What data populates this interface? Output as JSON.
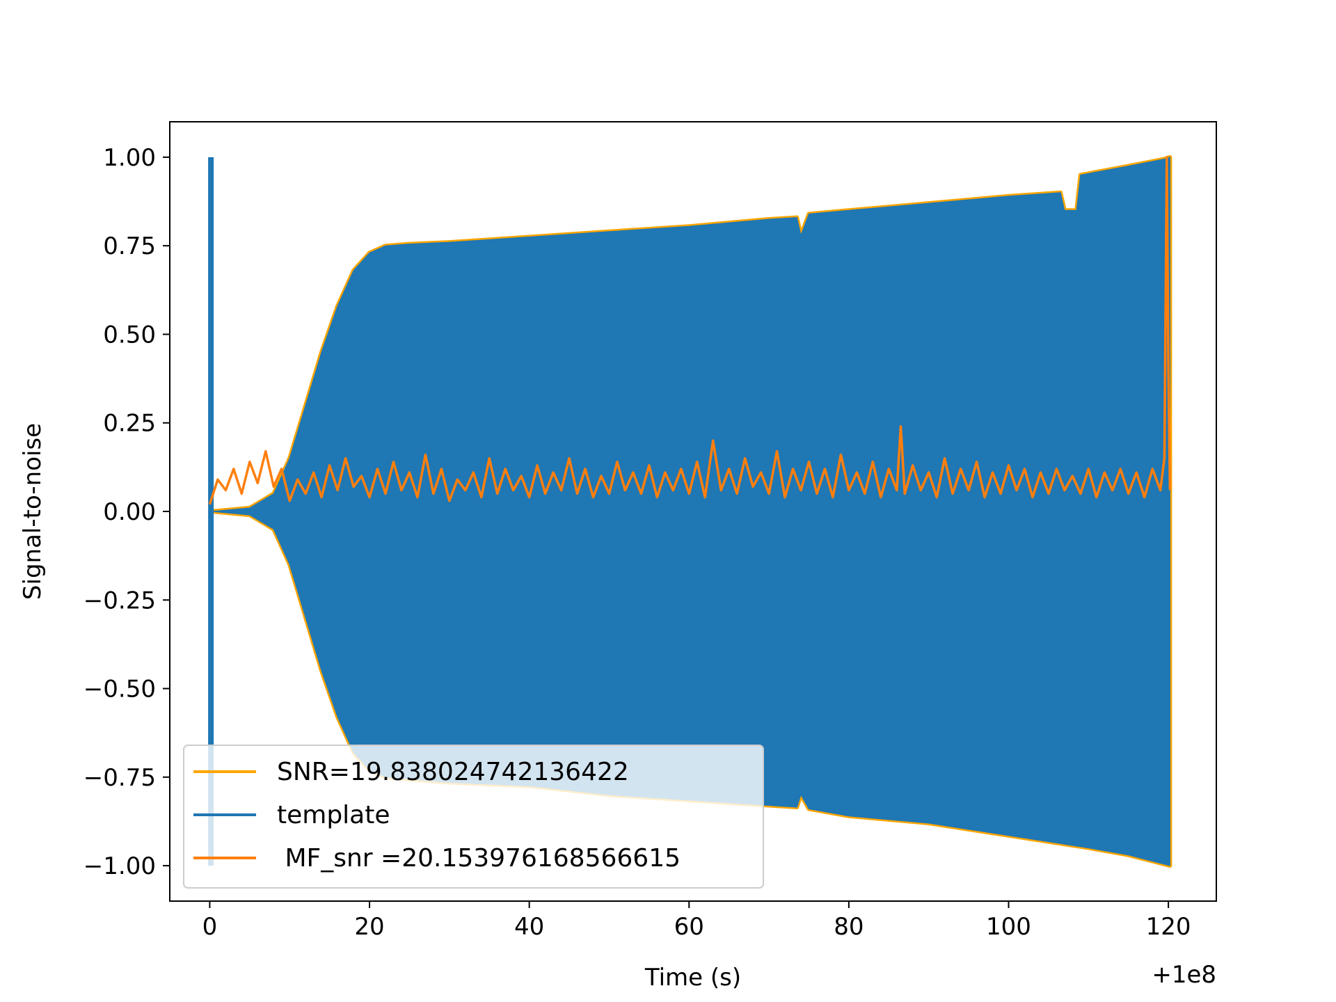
{
  "chart_data": {
    "type": "line",
    "title": "",
    "xlabel": "Time (s)",
    "ylabel": "Signal-to-noise",
    "x_offset_label": "+1e8",
    "xlim": [
      -5,
      126
    ],
    "ylim": [
      -1.1,
      1.1
    ],
    "x_ticks": [
      0,
      20,
      40,
      60,
      80,
      100,
      120
    ],
    "x_tick_labels": [
      "0",
      "20",
      "40",
      "60",
      "80",
      "100",
      "120"
    ],
    "y_ticks": [
      1.0,
      0.75,
      0.5,
      0.25,
      0.0,
      -0.25,
      -0.5,
      -0.75,
      -1.0
    ],
    "y_tick_labels": [
      "1.00",
      "0.75",
      "0.50",
      "0.25",
      "0.00",
      "−0.25",
      "−0.50",
      "−0.75",
      "−1.00"
    ],
    "grid": false,
    "legend_position": "lower-left",
    "series": [
      {
        "name": "SNR=19.838024742136422",
        "color": "#ffa500",
        "kind": "envelope",
        "upper": [
          [
            0.2,
            0.0
          ],
          [
            5,
            0.01
          ],
          [
            8,
            0.05
          ],
          [
            10,
            0.15
          ],
          [
            12,
            0.3
          ],
          [
            14,
            0.45
          ],
          [
            16,
            0.58
          ],
          [
            18,
            0.68
          ],
          [
            20,
            0.73
          ],
          [
            22,
            0.75
          ],
          [
            25,
            0.755
          ],
          [
            30,
            0.76
          ],
          [
            40,
            0.775
          ],
          [
            50,
            0.79
          ],
          [
            60,
            0.805
          ],
          [
            70,
            0.825
          ],
          [
            73.5,
            0.83
          ],
          [
            74,
            0.78
          ],
          [
            75,
            0.84
          ],
          [
            80,
            0.85
          ],
          [
            90,
            0.87
          ],
          [
            100,
            0.89
          ],
          [
            106.5,
            0.9
          ],
          [
            107,
            0.85
          ],
          [
            108.5,
            0.85
          ],
          [
            109,
            0.95
          ],
          [
            115,
            0.975
          ],
          [
            119.5,
            0.995
          ],
          [
            120.2,
            1.0
          ]
        ],
        "lower": [
          [
            0.2,
            0.0
          ],
          [
            5,
            -0.01
          ],
          [
            8,
            -0.05
          ],
          [
            10,
            -0.15
          ],
          [
            12,
            -0.3
          ],
          [
            14,
            -0.45
          ],
          [
            16,
            -0.58
          ],
          [
            18,
            -0.68
          ],
          [
            20,
            -0.73
          ],
          [
            22,
            -0.75
          ],
          [
            30,
            -0.765
          ],
          [
            40,
            -0.775
          ],
          [
            50,
            -0.8
          ],
          [
            60,
            -0.815
          ],
          [
            70,
            -0.83
          ],
          [
            73.5,
            -0.835
          ],
          [
            74,
            -0.8
          ],
          [
            75,
            -0.84
          ],
          [
            80,
            -0.86
          ],
          [
            90,
            -0.88
          ],
          [
            100,
            -0.915
          ],
          [
            110,
            -0.95
          ],
          [
            115,
            -0.97
          ],
          [
            120.2,
            -1.0
          ]
        ]
      },
      {
        "name": "template",
        "color": "#1f77b4",
        "kind": "envelope",
        "upper": [
          [
            0.2,
            0.0
          ],
          [
            5,
            0.01
          ],
          [
            8,
            0.05
          ],
          [
            10,
            0.15
          ],
          [
            12,
            0.3
          ],
          [
            14,
            0.45
          ],
          [
            16,
            0.58
          ],
          [
            18,
            0.68
          ],
          [
            20,
            0.73
          ],
          [
            22,
            0.75
          ],
          [
            25,
            0.755
          ],
          [
            30,
            0.76
          ],
          [
            40,
            0.775
          ],
          [
            50,
            0.79
          ],
          [
            60,
            0.805
          ],
          [
            70,
            0.825
          ],
          [
            73.5,
            0.83
          ],
          [
            74,
            0.78
          ],
          [
            75,
            0.84
          ],
          [
            80,
            0.85
          ],
          [
            90,
            0.87
          ],
          [
            100,
            0.89
          ],
          [
            106.5,
            0.9
          ],
          [
            107,
            0.85
          ],
          [
            108.5,
            0.85
          ],
          [
            109,
            0.95
          ],
          [
            115,
            0.975
          ],
          [
            119.5,
            0.995
          ],
          [
            120.2,
            1.0
          ]
        ],
        "lower": [
          [
            0.2,
            0.0
          ],
          [
            5,
            -0.01
          ],
          [
            8,
            -0.05
          ],
          [
            10,
            -0.15
          ],
          [
            12,
            -0.3
          ],
          [
            14,
            -0.45
          ],
          [
            16,
            -0.58
          ],
          [
            18,
            -0.68
          ],
          [
            20,
            -0.73
          ],
          [
            22,
            -0.75
          ],
          [
            30,
            -0.765
          ],
          [
            40,
            -0.775
          ],
          [
            50,
            -0.8
          ],
          [
            60,
            -0.815
          ],
          [
            70,
            -0.83
          ],
          [
            73.5,
            -0.835
          ],
          [
            74,
            -0.8
          ],
          [
            75,
            -0.84
          ],
          [
            80,
            -0.86
          ],
          [
            90,
            -0.88
          ],
          [
            100,
            -0.915
          ],
          [
            110,
            -0.95
          ],
          [
            115,
            -0.97
          ],
          [
            120.2,
            -1.0
          ]
        ],
        "spike": {
          "x": [
            -0.2,
            0.5
          ],
          "y": [
            -1.0,
            1.0
          ]
        }
      },
      {
        "name": " MF_snr =20.153976168566615",
        "color": "#ff7f0e",
        "kind": "noise",
        "baseline": 0.06,
        "points": [
          [
            0,
            0.02
          ],
          [
            1,
            0.09
          ],
          [
            2,
            0.06
          ],
          [
            3,
            0.12
          ],
          [
            4,
            0.05
          ],
          [
            5,
            0.14
          ],
          [
            6,
            0.08
          ],
          [
            7,
            0.17
          ],
          [
            8,
            0.07
          ],
          [
            9,
            0.12
          ],
          [
            10,
            0.03
          ],
          [
            11,
            0.09
          ],
          [
            12,
            0.05
          ],
          [
            13,
            0.11
          ],
          [
            14,
            0.04
          ],
          [
            15,
            0.13
          ],
          [
            16,
            0.06
          ],
          [
            17,
            0.15
          ],
          [
            18,
            0.07
          ],
          [
            19,
            0.1
          ],
          [
            20,
            0.04
          ],
          [
            21,
            0.12
          ],
          [
            22,
            0.05
          ],
          [
            23,
            0.14
          ],
          [
            24,
            0.06
          ],
          [
            25,
            0.11
          ],
          [
            26,
            0.04
          ],
          [
            27,
            0.16
          ],
          [
            28,
            0.05
          ],
          [
            29,
            0.12
          ],
          [
            30,
            0.03
          ],
          [
            31,
            0.09
          ],
          [
            32,
            0.06
          ],
          [
            33,
            0.11
          ],
          [
            34,
            0.04
          ],
          [
            35,
            0.15
          ],
          [
            36,
            0.05
          ],
          [
            37,
            0.12
          ],
          [
            38,
            0.06
          ],
          [
            39,
            0.1
          ],
          [
            40,
            0.04
          ],
          [
            41,
            0.13
          ],
          [
            42,
            0.05
          ],
          [
            43,
            0.11
          ],
          [
            44,
            0.06
          ],
          [
            45,
            0.15
          ],
          [
            46,
            0.05
          ],
          [
            47,
            0.12
          ],
          [
            48,
            0.04
          ],
          [
            49,
            0.1
          ],
          [
            50,
            0.05
          ],
          [
            51,
            0.14
          ],
          [
            52,
            0.06
          ],
          [
            53,
            0.11
          ],
          [
            54,
            0.05
          ],
          [
            55,
            0.13
          ],
          [
            56,
            0.04
          ],
          [
            57,
            0.11
          ],
          [
            58,
            0.06
          ],
          [
            59,
            0.12
          ],
          [
            60,
            0.05
          ],
          [
            61,
            0.14
          ],
          [
            62,
            0.04
          ],
          [
            63,
            0.2
          ],
          [
            64,
            0.06
          ],
          [
            65,
            0.12
          ],
          [
            66,
            0.05
          ],
          [
            67,
            0.15
          ],
          [
            68,
            0.07
          ],
          [
            69,
            0.11
          ],
          [
            70,
            0.05
          ],
          [
            71,
            0.17
          ],
          [
            72,
            0.04
          ],
          [
            73,
            0.12
          ],
          [
            74,
            0.06
          ],
          [
            75,
            0.14
          ],
          [
            76,
            0.05
          ],
          [
            77,
            0.12
          ],
          [
            78,
            0.04
          ],
          [
            79,
            0.16
          ],
          [
            80,
            0.06
          ],
          [
            81,
            0.11
          ],
          [
            82,
            0.05
          ],
          [
            83,
            0.14
          ],
          [
            84,
            0.04
          ],
          [
            85,
            0.12
          ],
          [
            86,
            0.06
          ],
          [
            86.5,
            0.24
          ],
          [
            87,
            0.05
          ],
          [
            88,
            0.13
          ],
          [
            89,
            0.06
          ],
          [
            90,
            0.11
          ],
          [
            91,
            0.04
          ],
          [
            92,
            0.15
          ],
          [
            93,
            0.05
          ],
          [
            94,
            0.12
          ],
          [
            95,
            0.06
          ],
          [
            96,
            0.14
          ],
          [
            97,
            0.04
          ],
          [
            98,
            0.11
          ],
          [
            99,
            0.05
          ],
          [
            100,
            0.13
          ],
          [
            101,
            0.06
          ],
          [
            102,
            0.12
          ],
          [
            103,
            0.04
          ],
          [
            104,
            0.11
          ],
          [
            105,
            0.05
          ],
          [
            106,
            0.12
          ],
          [
            107,
            0.06
          ],
          [
            108,
            0.1
          ],
          [
            109,
            0.05
          ],
          [
            110,
            0.12
          ],
          [
            111,
            0.04
          ],
          [
            112,
            0.11
          ],
          [
            113,
            0.06
          ],
          [
            114,
            0.12
          ],
          [
            115,
            0.05
          ],
          [
            116,
            0.11
          ],
          [
            117,
            0.04
          ],
          [
            118,
            0.12
          ],
          [
            119,
            0.06
          ],
          [
            119.5,
            0.15
          ],
          [
            119.8,
            1.0
          ],
          [
            120,
            0.4
          ],
          [
            120.2,
            0.06
          ]
        ]
      }
    ],
    "legend": [
      {
        "label": "SNR=19.838024742136422",
        "color": "#ffa500"
      },
      {
        "label": "template",
        "color": "#1f77b4"
      },
      {
        "label": " MF_snr =20.153976168566615",
        "color": "#ff7f0e"
      }
    ]
  }
}
